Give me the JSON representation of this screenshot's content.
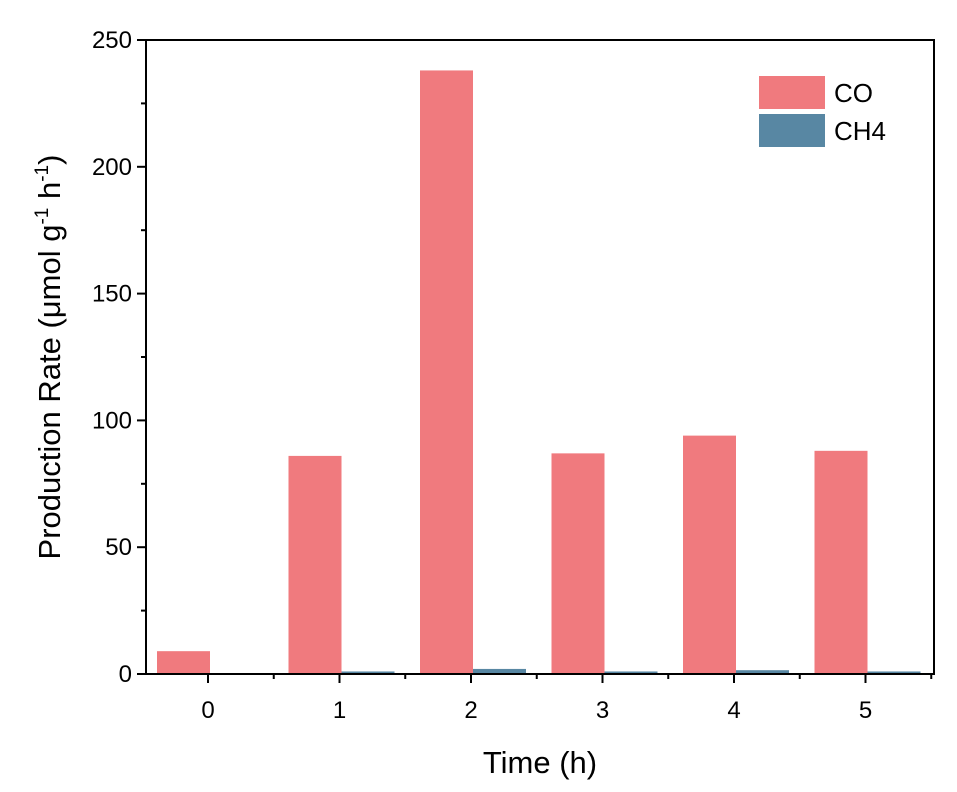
{
  "chart_data": {
    "type": "bar",
    "categories": [
      "0",
      "1",
      "2",
      "3",
      "4",
      "5"
    ],
    "series": [
      {
        "name": "CO",
        "values": [
          9,
          86,
          238,
          87,
          94,
          88
        ],
        "color": "#f07a7e"
      },
      {
        "name": "CH4",
        "values": [
          0,
          1,
          2,
          1,
          1.5,
          1
        ],
        "color": "#5887a3"
      }
    ],
    "xlabel": "Time (h)",
    "ylabel": {
      "prefix": "Production Rate (μmol g",
      "sup1": "-1",
      "middle": " h",
      "sup2": "-1",
      "suffix": ")"
    },
    "ylim": [
      0,
      250
    ],
    "yticks": [
      "0",
      "50",
      "100",
      "150",
      "200",
      "250"
    ],
    "grid": false,
    "legend_position": "top-right"
  }
}
